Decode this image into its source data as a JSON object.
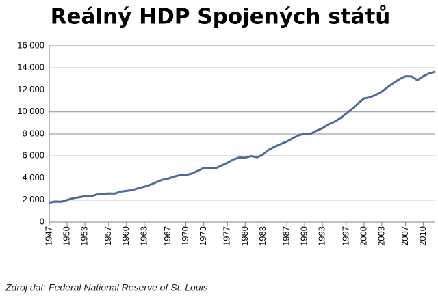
{
  "chart_data": {
    "type": "line",
    "title": "Reálný HDP Spojených států",
    "source": "Zdroj dat: Federal National Reserve of St. Louis",
    "x": [
      1947,
      1948,
      1949,
      1950,
      1951,
      1952,
      1953,
      1954,
      1955,
      1956,
      1957,
      1958,
      1959,
      1960,
      1961,
      1962,
      1963,
      1964,
      1965,
      1966,
      1967,
      1968,
      1969,
      1970,
      1971,
      1972,
      1973,
      1974,
      1975,
      1976,
      1977,
      1978,
      1979,
      1980,
      1981,
      1982,
      1983,
      1984,
      1985,
      1986,
      1987,
      1988,
      1989,
      1990,
      1991,
      1992,
      1993,
      1994,
      1995,
      1996,
      1997,
      1998,
      1999,
      2000,
      2001,
      2002,
      2003,
      2004,
      2005,
      2006,
      2007,
      2008,
      2009,
      2010,
      2011,
      2012
    ],
    "values": [
      1770,
      1850,
      1840,
      2000,
      2160,
      2250,
      2350,
      2330,
      2500,
      2550,
      2600,
      2580,
      2760,
      2830,
      2900,
      3080,
      3210,
      3390,
      3610,
      3840,
      3940,
      4130,
      4260,
      4270,
      4410,
      4650,
      4910,
      4890,
      4880,
      5140,
      5380,
      5680,
      5860,
      5840,
      5990,
      5870,
      6140,
      6580,
      6850,
      7090,
      7310,
      7610,
      7880,
      8030,
      8000,
      8290,
      8520,
      8870,
      9090,
      9430,
      9850,
      10280,
      10770,
      11220,
      11330,
      11550,
      11840,
      12260,
      12640,
      12980,
      13230,
      13220,
      12880,
      13250,
      13500,
      13650
    ],
    "color": "#4a6a9a",
    "xlim": [
      1947,
      2012
    ],
    "xticks": [
      1947,
      1950,
      1953,
      1957,
      1960,
      1963,
      1967,
      1970,
      1973,
      1977,
      1980,
      1983,
      1987,
      1990,
      1993,
      1997,
      2000,
      2003,
      2007,
      2010
    ],
    "ylim": [
      0,
      16000
    ],
    "yticks": [
      0,
      {
        "value": 2000,
        "label": "2 000"
      },
      {
        "value": 4000,
        "label": "4 000"
      },
      {
        "value": 6000,
        "label": "6 000"
      },
      {
        "value": 8000,
        "label": "8 000"
      },
      {
        "value": 10000,
        "label": "10 000"
      },
      {
        "value": 12000,
        "label": "12 000"
      },
      {
        "value": 14000,
        "label": "14 000"
      },
      {
        "value": 16000,
        "label": "16 000"
      }
    ],
    "grid": true
  }
}
